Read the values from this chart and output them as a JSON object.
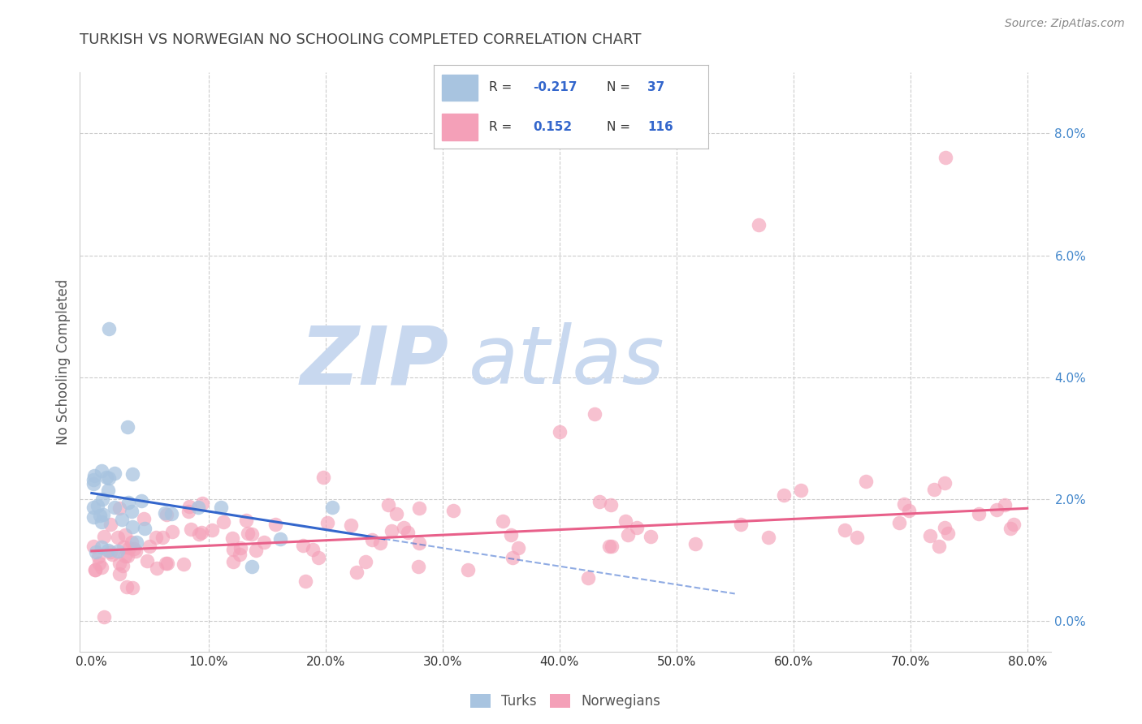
{
  "title": "TURKISH VS NORWEGIAN NO SCHOOLING COMPLETED CORRELATION CHART",
  "source": "Source: ZipAtlas.com",
  "ylabel": "No Schooling Completed",
  "turks_R": -0.217,
  "turks_N": 37,
  "norwegians_R": 0.152,
  "norwegians_N": 116,
  "turks_color": "#a8c4e0",
  "norwegians_color": "#f4a0b8",
  "turks_line_color": "#3366cc",
  "norwegians_line_color": "#e8608a",
  "watermark_ZIP": "ZIP",
  "watermark_atlas": "atlas",
  "watermark_color_ZIP": "#c8d8ef",
  "watermark_color_atlas": "#c8d8ef",
  "legend_R_N_color": "#3366cc",
  "legend_text_color": "#333333",
  "title_color": "#444444",
  "source_color": "#888888",
  "ylabel_color": "#555555",
  "yaxis_label_color": "#4488cc",
  "xaxis_label_color": "#333333",
  "background_color": "#ffffff",
  "grid_color": "#cccccc",
  "xlim": [
    -1.0,
    82.0
  ],
  "ylim": [
    -0.5,
    9.0
  ],
  "x_tick_vals": [
    0,
    10,
    20,
    30,
    40,
    50,
    60,
    70,
    80
  ],
  "y_tick_vals": [
    0,
    2,
    4,
    6,
    8
  ],
  "turks_line_x0": 0.0,
  "turks_line_y0": 2.1,
  "turks_line_x1": 25.0,
  "turks_line_y1": 1.35,
  "turks_dash_x0": 25.0,
  "turks_dash_y0": 1.35,
  "turks_dash_x1": 55.0,
  "turks_dash_y1": 0.45,
  "norw_line_x0": 0.0,
  "norw_line_y0": 1.15,
  "norw_line_x1": 80.0,
  "norw_line_y1": 1.85
}
